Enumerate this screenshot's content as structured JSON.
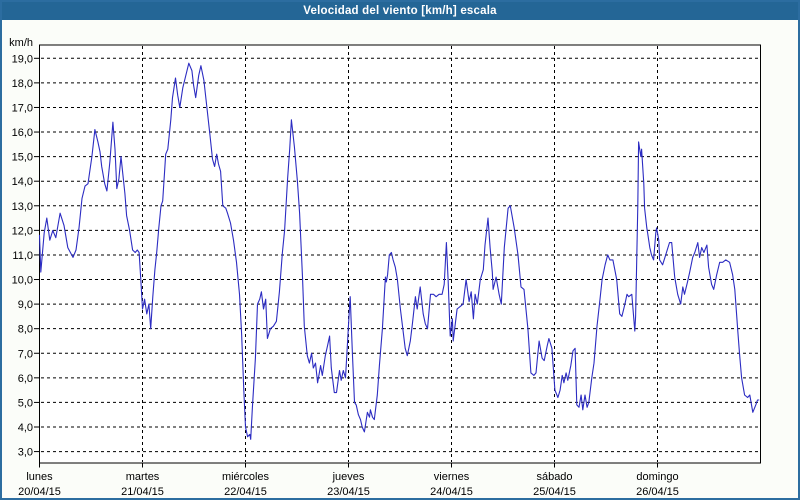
{
  "window": {
    "title": "Velocidad del viento [km/h] escala"
  },
  "colors": {
    "titlebar_bg": "#246696",
    "titlebar_text": "#ffffff",
    "outer_border": "#2c6da0",
    "page_bg": "#fbfdf9",
    "plot_bg": "#ffffff",
    "axis_and_grid": "#000000",
    "series_line": "#2c2cc2"
  },
  "chart_data": {
    "type": "line",
    "title": "Velocidad del viento [km/h] escala",
    "ylabel": "km/h",
    "ylim": [
      3,
      19
    ],
    "ytick_step": 1,
    "ytick_labels": [
      "19,0",
      "18,0",
      "17,0",
      "16,0",
      "15,0",
      "14,0",
      "13,0",
      "12,0",
      "11,0",
      "10,0",
      "9,0",
      "8,0",
      "7,0",
      "6,0",
      "5,0",
      "4,0",
      "3,0"
    ],
    "x_unit": "hours",
    "xlim": [
      0,
      168
    ],
    "grid": true,
    "legend_position": "none",
    "x_axis_days": [
      {
        "name": "lunes",
        "date": "20/04/15"
      },
      {
        "name": "martes",
        "date": "21/04/15"
      },
      {
        "name": "miércoles",
        "date": "22/04/15"
      },
      {
        "name": "jueves",
        "date": "23/04/15"
      },
      {
        "name": "viernes",
        "date": "24/04/15"
      },
      {
        "name": "sábado",
        "date": "25/04/15"
      },
      {
        "name": "domingo",
        "date": "26/04/15"
      }
    ],
    "series": [
      {
        "name": "Velocidad del viento",
        "color": "#2c2cc2",
        "points": [
          [
            0,
            11.8
          ],
          [
            0.3,
            10.3
          ],
          [
            1.1,
            11.9
          ],
          [
            1.7,
            12.5
          ],
          [
            2.4,
            11.6
          ],
          [
            3.1,
            12.0
          ],
          [
            3.8,
            11.7
          ],
          [
            4.8,
            12.7
          ],
          [
            5.7,
            12.2
          ],
          [
            6.6,
            11.3
          ],
          [
            7.8,
            10.9
          ],
          [
            8.5,
            11.2
          ],
          [
            9.2,
            12.1
          ],
          [
            9.9,
            13.3
          ],
          [
            10.6,
            13.8
          ],
          [
            11.3,
            13.9
          ],
          [
            12.2,
            15.0
          ],
          [
            12.9,
            16.1
          ],
          [
            13.6,
            15.6
          ],
          [
            14.1,
            15.2
          ],
          [
            14.5,
            14.6
          ],
          [
            15.2,
            13.9
          ],
          [
            15.7,
            13.6
          ],
          [
            16.4,
            14.8
          ],
          [
            17.1,
            16.4
          ],
          [
            17.6,
            15.3
          ],
          [
            18.0,
            13.7
          ],
          [
            18.5,
            14.1
          ],
          [
            19.0,
            15.0
          ],
          [
            19.4,
            14.3
          ],
          [
            19.9,
            13.5
          ],
          [
            20.3,
            12.6
          ],
          [
            21.0,
            12.0
          ],
          [
            21.7,
            11.2
          ],
          [
            22.3,
            11.1
          ],
          [
            22.8,
            11.2
          ],
          [
            23.2,
            11.1
          ],
          [
            23.6,
            10.0
          ],
          [
            24.0,
            8.8
          ],
          [
            24.5,
            9.2
          ],
          [
            25.0,
            8.6
          ],
          [
            25.5,
            9.0
          ],
          [
            25.9,
            8.0
          ],
          [
            26.4,
            9.3
          ],
          [
            26.9,
            10.4
          ],
          [
            27.3,
            11.1
          ],
          [
            27.8,
            12.1
          ],
          [
            28.3,
            13.0
          ],
          [
            28.7,
            13.2
          ],
          [
            29.4,
            15.1
          ],
          [
            29.9,
            15.3
          ],
          [
            30.6,
            16.5
          ],
          [
            31.0,
            17.4
          ],
          [
            31.7,
            18.2
          ],
          [
            32.2,
            17.5
          ],
          [
            32.7,
            17.0
          ],
          [
            33.4,
            17.8
          ],
          [
            34.1,
            18.3
          ],
          [
            34.8,
            18.8
          ],
          [
            35.5,
            18.5
          ],
          [
            35.9,
            17.9
          ],
          [
            36.4,
            17.4
          ],
          [
            37.1,
            18.3
          ],
          [
            37.6,
            18.7
          ],
          [
            38.3,
            18.1
          ],
          [
            39.0,
            17.0
          ],
          [
            39.7,
            15.9
          ],
          [
            40.3,
            14.9
          ],
          [
            40.8,
            14.6
          ],
          [
            41.3,
            15.1
          ],
          [
            41.7,
            14.7
          ],
          [
            42.2,
            14.4
          ],
          [
            42.7,
            13.0
          ],
          [
            43.4,
            12.9
          ],
          [
            43.8,
            12.7
          ],
          [
            44.5,
            12.3
          ],
          [
            45.2,
            11.6
          ],
          [
            45.9,
            10.7
          ],
          [
            46.6,
            9.4
          ],
          [
            47.1,
            7.8
          ],
          [
            47.6,
            5.5
          ],
          [
            48.0,
            4.0
          ],
          [
            48.5,
            3.6
          ],
          [
            49.0,
            3.7
          ],
          [
            49.2,
            3.5
          ],
          [
            49.6,
            4.8
          ],
          [
            50.3,
            6.8
          ],
          [
            50.8,
            9.0
          ],
          [
            51.3,
            9.2
          ],
          [
            51.7,
            9.5
          ],
          [
            52.2,
            8.8
          ],
          [
            52.7,
            9.2
          ],
          [
            53.1,
            7.6
          ],
          [
            53.8,
            8.0
          ],
          [
            54.5,
            8.1
          ],
          [
            55.2,
            8.3
          ],
          [
            55.9,
            9.5
          ],
          [
            56.6,
            11.1
          ],
          [
            57.1,
            12.0
          ],
          [
            57.8,
            14.1
          ],
          [
            58.3,
            15.3
          ],
          [
            58.7,
            16.5
          ],
          [
            59.4,
            15.4
          ],
          [
            60.1,
            14.0
          ],
          [
            60.6,
            12.7
          ],
          [
            61.3,
            10.0
          ],
          [
            61.7,
            8.1
          ],
          [
            62.4,
            6.9
          ],
          [
            62.9,
            6.6
          ],
          [
            63.4,
            7.0
          ],
          [
            63.8,
            6.4
          ],
          [
            64.3,
            6.6
          ],
          [
            64.8,
            5.8
          ],
          [
            65.5,
            6.5
          ],
          [
            65.9,
            6.1
          ],
          [
            66.6,
            6.9
          ],
          [
            67.1,
            7.3
          ],
          [
            67.6,
            7.7
          ],
          [
            68.0,
            6.4
          ],
          [
            68.7,
            5.4
          ],
          [
            69.2,
            5.4
          ],
          [
            69.9,
            6.3
          ],
          [
            70.3,
            5.9
          ],
          [
            70.8,
            6.3
          ],
          [
            71.3,
            6.0
          ],
          [
            71.7,
            7.2
          ],
          [
            72.2,
            8.8
          ],
          [
            72.4,
            9.3
          ],
          [
            72.9,
            7.0
          ],
          [
            73.4,
            5.0
          ],
          [
            73.8,
            4.9
          ],
          [
            74.3,
            4.5
          ],
          [
            74.8,
            4.3
          ],
          [
            75.2,
            4.0
          ],
          [
            75.7,
            3.8
          ],
          [
            76.4,
            4.6
          ],
          [
            76.9,
            4.4
          ],
          [
            77.1,
            4.7
          ],
          [
            77.6,
            4.4
          ],
          [
            78.0,
            4.3
          ],
          [
            78.7,
            5.3
          ],
          [
            79.2,
            6.5
          ],
          [
            79.9,
            8.0
          ],
          [
            80.6,
            10.1
          ],
          [
            80.8,
            9.9
          ],
          [
            81.1,
            10.2
          ],
          [
            81.5,
            11.0
          ],
          [
            82.0,
            11.1
          ],
          [
            82.4,
            10.8
          ],
          [
            82.9,
            10.5
          ],
          [
            83.4,
            10.0
          ],
          [
            84.1,
            8.8
          ],
          [
            84.8,
            7.8
          ],
          [
            85.2,
            7.2
          ],
          [
            85.7,
            6.9
          ],
          [
            86.4,
            7.5
          ],
          [
            86.9,
            8.2
          ],
          [
            87.6,
            9.3
          ],
          [
            88.0,
            8.8
          ],
          [
            88.7,
            9.7
          ],
          [
            89.4,
            8.6
          ],
          [
            89.9,
            8.2
          ],
          [
            90.4,
            8.0
          ],
          [
            91.1,
            9.4
          ],
          [
            91.8,
            9.4
          ],
          [
            92.4,
            9.3
          ],
          [
            93.1,
            9.4
          ],
          [
            93.8,
            9.4
          ],
          [
            94.3,
            9.8
          ],
          [
            94.8,
            11.5
          ],
          [
            95.2,
            10.0
          ],
          [
            95.7,
            7.7
          ],
          [
            96.2,
            8.4
          ],
          [
            96.4,
            7.5
          ],
          [
            97.3,
            8.8
          ],
          [
            98.0,
            8.9
          ],
          [
            98.7,
            9.0
          ],
          [
            99.4,
            10.0
          ],
          [
            100.1,
            9.1
          ],
          [
            100.6,
            9.5
          ],
          [
            101.1,
            8.4
          ],
          [
            101.5,
            9.4
          ],
          [
            102.0,
            9.0
          ],
          [
            102.7,
            10.0
          ],
          [
            103.4,
            10.4
          ],
          [
            103.8,
            11.4
          ],
          [
            104.5,
            12.5
          ],
          [
            105.0,
            11.3
          ],
          [
            105.5,
            10.3
          ],
          [
            105.7,
            9.6
          ],
          [
            106.4,
            10.1
          ],
          [
            107.1,
            9.4
          ],
          [
            107.6,
            9.0
          ],
          [
            108.3,
            11.3
          ],
          [
            109.2,
            12.9
          ],
          [
            109.7,
            13.0
          ],
          [
            110.6,
            12.1
          ],
          [
            111.5,
            11.0
          ],
          [
            112.2,
            9.7
          ],
          [
            112.9,
            9.6
          ],
          [
            113.8,
            8.0
          ],
          [
            114.5,
            6.2
          ],
          [
            115.2,
            6.1
          ],
          [
            115.7,
            6.2
          ],
          [
            116.4,
            7.5
          ],
          [
            117.1,
            6.8
          ],
          [
            117.6,
            6.7
          ],
          [
            118.3,
            7.3
          ],
          [
            118.7,
            7.6
          ],
          [
            119.4,
            7.2
          ],
          [
            120.1,
            5.5
          ],
          [
            120.8,
            5.2
          ],
          [
            121.3,
            5.5
          ],
          [
            121.8,
            6.1
          ],
          [
            122.2,
            5.8
          ],
          [
            122.7,
            6.2
          ],
          [
            123.1,
            5.9
          ],
          [
            123.8,
            6.5
          ],
          [
            124.3,
            7.1
          ],
          [
            124.8,
            7.2
          ],
          [
            125.2,
            4.9
          ],
          [
            125.7,
            4.8
          ],
          [
            126.2,
            5.3
          ],
          [
            126.6,
            4.7
          ],
          [
            127.1,
            5.3
          ],
          [
            127.6,
            4.8
          ],
          [
            128.0,
            5.0
          ],
          [
            128.7,
            6.0
          ],
          [
            129.2,
            6.6
          ],
          [
            129.9,
            8.1
          ],
          [
            130.6,
            9.2
          ],
          [
            131.1,
            10.0
          ],
          [
            131.8,
            10.6
          ],
          [
            132.4,
            11.0
          ],
          [
            132.9,
            10.8
          ],
          [
            133.6,
            10.8
          ],
          [
            134.5,
            10.0
          ],
          [
            135.2,
            8.6
          ],
          [
            135.7,
            8.5
          ],
          [
            136.4,
            9.0
          ],
          [
            136.9,
            9.4
          ],
          [
            137.3,
            9.3
          ],
          [
            138.0,
            9.4
          ],
          [
            138.7,
            7.9
          ],
          [
            138.9,
            8.5
          ],
          [
            139.4,
            13.0
          ],
          [
            139.6,
            15.6
          ],
          [
            140.1,
            15.0
          ],
          [
            140.3,
            15.3
          ],
          [
            140.8,
            13.9
          ],
          [
            141.0,
            12.9
          ],
          [
            141.5,
            12.1
          ],
          [
            141.7,
            11.9
          ],
          [
            142.2,
            11.3
          ],
          [
            142.6,
            11.0
          ],
          [
            143.1,
            10.8
          ],
          [
            143.6,
            11.9
          ],
          [
            143.8,
            12.1
          ],
          [
            144.3,
            11.6
          ],
          [
            144.5,
            10.8
          ],
          [
            145.2,
            10.6
          ],
          [
            145.9,
            11.0
          ],
          [
            146.8,
            11.5
          ],
          [
            147.3,
            11.5
          ],
          [
            148.0,
            10.1
          ],
          [
            148.7,
            9.4
          ],
          [
            149.4,
            9.0
          ],
          [
            149.9,
            9.7
          ],
          [
            150.3,
            9.4
          ],
          [
            151.0,
            9.9
          ],
          [
            151.5,
            10.3
          ],
          [
            152.2,
            10.9
          ],
          [
            152.7,
            11.1
          ],
          [
            153.4,
            11.5
          ],
          [
            153.8,
            10.9
          ],
          [
            154.3,
            11.3
          ],
          [
            154.8,
            11.1
          ],
          [
            155.5,
            11.4
          ],
          [
            155.9,
            10.5
          ],
          [
            156.6,
            9.8
          ],
          [
            157.1,
            9.6
          ],
          [
            157.8,
            10.2
          ],
          [
            158.5,
            10.7
          ],
          [
            159.2,
            10.7
          ],
          [
            159.9,
            10.8
          ],
          [
            160.8,
            10.7
          ],
          [
            161.5,
            10.2
          ],
          [
            162.0,
            9.6
          ],
          [
            162.7,
            7.9
          ],
          [
            163.1,
            7.0
          ],
          [
            163.6,
            6.0
          ],
          [
            164.3,
            5.3
          ],
          [
            165.0,
            5.2
          ],
          [
            165.5,
            5.3
          ],
          [
            165.9,
            4.9
          ],
          [
            166.2,
            4.6
          ],
          [
            166.9,
            4.9
          ],
          [
            167.3,
            5.1
          ],
          [
            167.6,
            5.1
          ]
        ]
      }
    ]
  }
}
